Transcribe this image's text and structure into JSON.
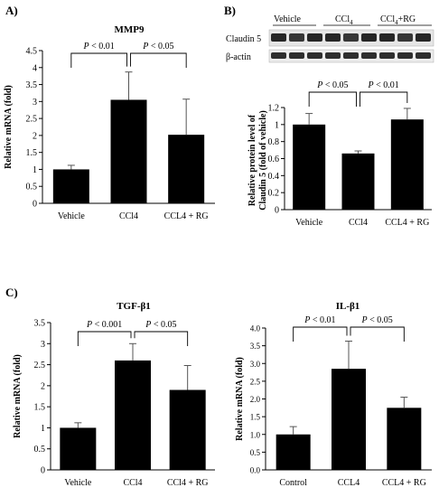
{
  "panels": {
    "a": "A)",
    "b": "B)",
    "c": "C)"
  },
  "chart_data": [
    {
      "id": "mmp9",
      "type": "bar",
      "title": "MMP9",
      "ylabel": "Relative mRNA (fold)",
      "xlabel": "",
      "categories": [
        "Vehicle",
        "CCl4",
        "CCL4 + RG"
      ],
      "values": [
        1.0,
        3.05,
        2.02
      ],
      "errors": [
        0.12,
        0.82,
        1.05
      ],
      "ylim": [
        0,
        4.5
      ],
      "yticks": [
        "0",
        "0.5",
        "1",
        "1.5",
        "2",
        "2.5",
        "3",
        "3.5",
        "4",
        "4.5"
      ],
      "grid": false,
      "annotations": [
        "P < 0.01",
        "P < 0.05"
      ]
    },
    {
      "id": "claudin5",
      "type": "bar",
      "title": "",
      "ylabel": "Relative protein level of Claudin 5 (fold of vehicle)",
      "xlabel": "",
      "categories": [
        "Vehicle",
        "CCl4",
        "CCL4 + RG"
      ],
      "values": [
        1.0,
        0.66,
        1.06
      ],
      "errors": [
        0.13,
        0.03,
        0.13
      ],
      "ylim": [
        0,
        1.2
      ],
      "yticks": [
        "0",
        "0.2",
        "0.4",
        "0.6",
        "0.8",
        "1",
        "1.2"
      ],
      "grid": false,
      "annotations": [
        "P < 0.05",
        "P < 0.01"
      ]
    },
    {
      "id": "tgfb1",
      "type": "bar",
      "title": "TGF-β1",
      "ylabel": "Relative mRNA (fold)",
      "xlabel": "",
      "categories": [
        "Vehicle",
        "CCl4",
        "CCl4 + RG"
      ],
      "values": [
        1.0,
        2.6,
        1.9
      ],
      "errors": [
        0.12,
        0.4,
        0.58
      ],
      "ylim": [
        0,
        3.5
      ],
      "yticks": [
        "0",
        "0.5",
        "1",
        "1.5",
        "2",
        "2.5",
        "3",
        "3.5"
      ],
      "grid": false,
      "annotations": [
        "P < 0.001",
        "P < 0.05"
      ]
    },
    {
      "id": "ilb1",
      "type": "bar",
      "title": "IL-β1",
      "ylabel": "Relative mRNA (fold)",
      "xlabel": "",
      "categories": [
        "Control",
        "CCL4",
        "CCL4 + RG"
      ],
      "values": [
        1.0,
        2.85,
        1.75
      ],
      "errors": [
        0.22,
        0.78,
        0.3
      ],
      "ylim": [
        0,
        4.0
      ],
      "yticks": [
        "0.0",
        "0.5",
        "1.0",
        "1.5",
        "2.0",
        "2.5",
        "3.0",
        "3.5",
        "4.0"
      ],
      "grid": false,
      "annotations": [
        "P < 0.01",
        "P < 0.05"
      ]
    }
  ],
  "blot": {
    "groups": [
      "Vehicle",
      "CCl",
      "CCl",
      "+RG"
    ],
    "subscript": "4",
    "rows": [
      "Claudin 5",
      "β-actin"
    ]
  }
}
